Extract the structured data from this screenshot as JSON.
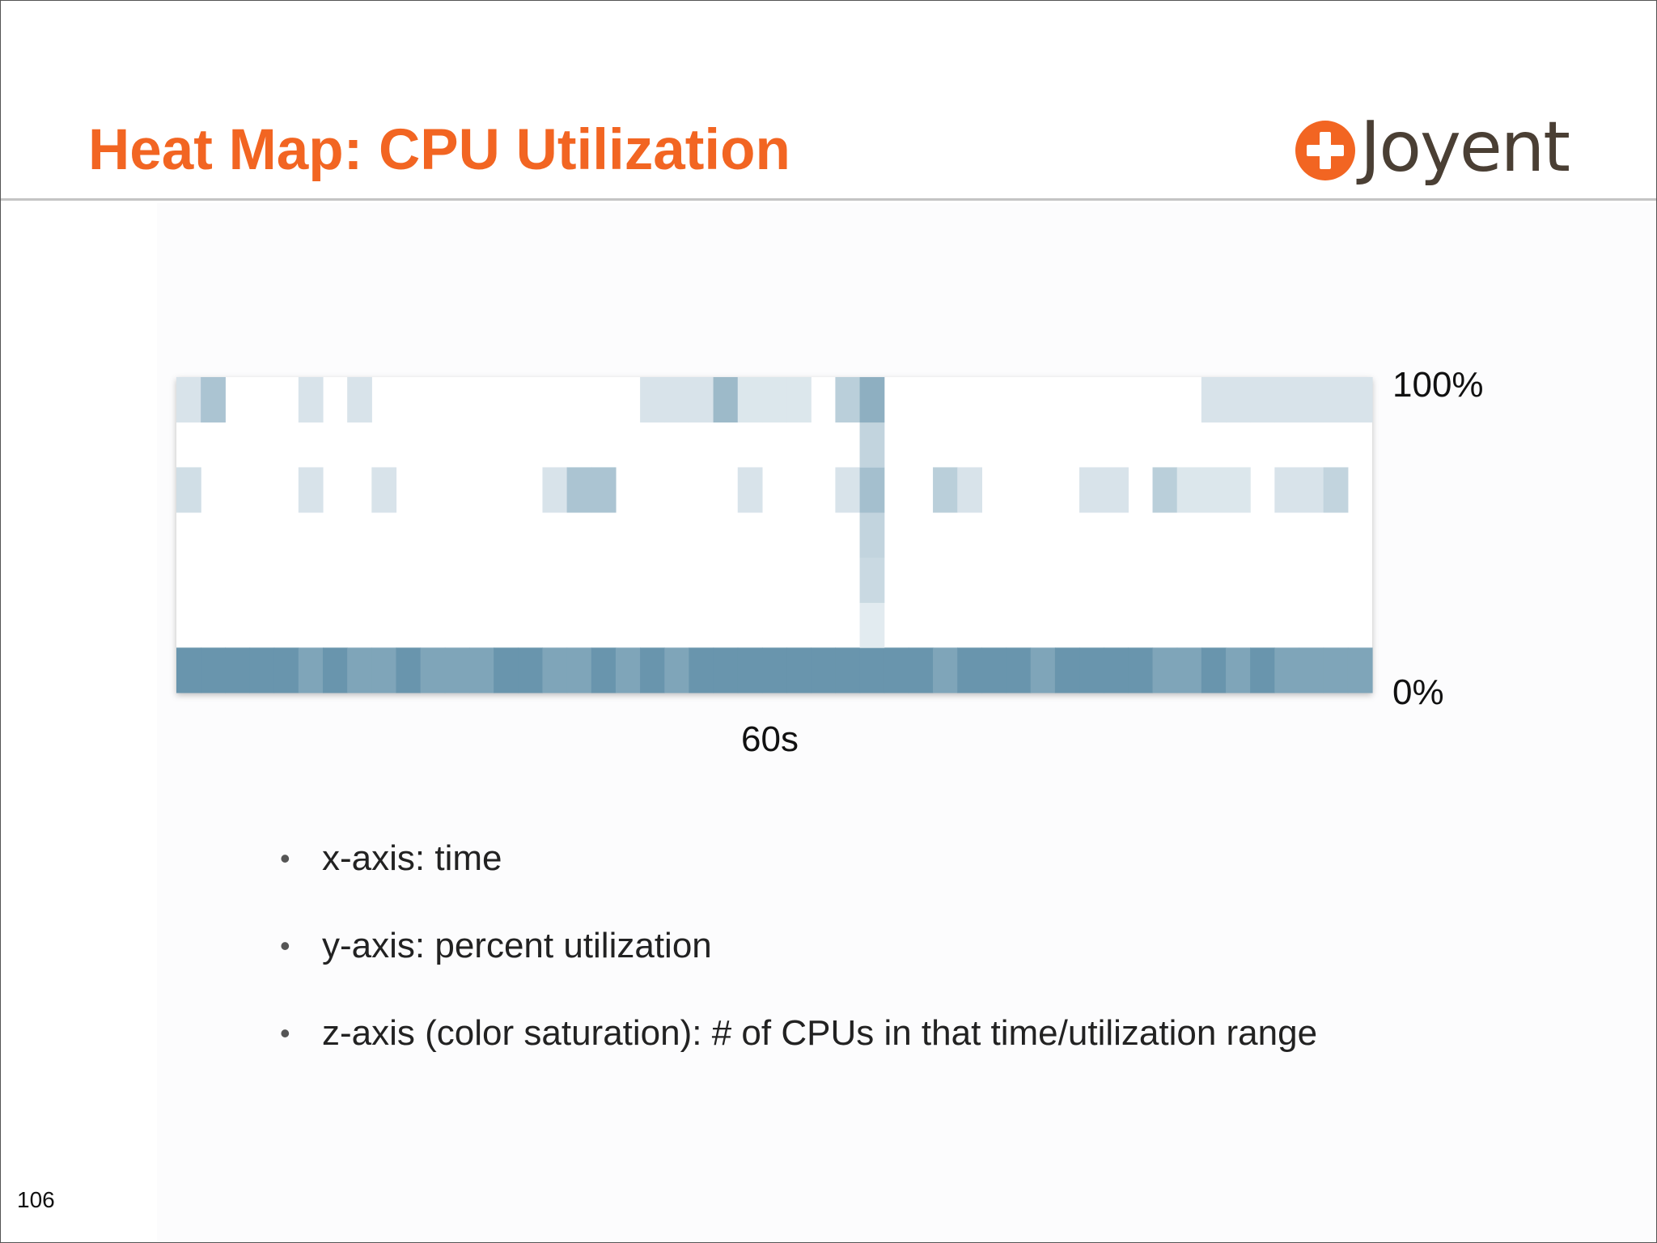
{
  "slide": {
    "title": "Heat Map: CPU Utilization",
    "title_color": "#f26522",
    "page_number": "106",
    "logo": {
      "text": "Joyent",
      "text_color": "#4a3f34",
      "mark_color": "#f26522",
      "icon": "plus-circle-icon"
    }
  },
  "chart_data": {
    "type": "heatmap",
    "title": "",
    "xlabel": "60s",
    "ylabel": "",
    "y_top_label": "100%",
    "y_bottom_label": "0%",
    "n_columns": 49,
    "n_rows": 7,
    "row_note": "row 0 = bottom (0%), row 6 = top (100%)",
    "z_scale": "CPU count (color saturation)",
    "colors": {
      "low": "#eef3f6",
      "high": "#5a8ba5"
    },
    "cells": [
      [
        0,
        0,
        0.9
      ],
      [
        1,
        0,
        0.9
      ],
      [
        2,
        0,
        0.9
      ],
      [
        3,
        0,
        0.9
      ],
      [
        4,
        0,
        0.9
      ],
      [
        5,
        0,
        0.75
      ],
      [
        6,
        0,
        0.9
      ],
      [
        7,
        0,
        0.75
      ],
      [
        8,
        0,
        0.75
      ],
      [
        9,
        0,
        0.9
      ],
      [
        10,
        0,
        0.75
      ],
      [
        11,
        0,
        0.75
      ],
      [
        12,
        0,
        0.75
      ],
      [
        13,
        0,
        0.9
      ],
      [
        14,
        0,
        0.9
      ],
      [
        15,
        0,
        0.75
      ],
      [
        16,
        0,
        0.75
      ],
      [
        17,
        0,
        0.9
      ],
      [
        18,
        0,
        0.75
      ],
      [
        19,
        0,
        0.9
      ],
      [
        20,
        0,
        0.75
      ],
      [
        21,
        0,
        0.9
      ],
      [
        22,
        0,
        0.9
      ],
      [
        23,
        0,
        0.9
      ],
      [
        24,
        0,
        0.9
      ],
      [
        25,
        0,
        0.9
      ],
      [
        26,
        0,
        0.9
      ],
      [
        27,
        0,
        0.9
      ],
      [
        28,
        0,
        0.9
      ],
      [
        29,
        0,
        0.9
      ],
      [
        30,
        0,
        0.9
      ],
      [
        31,
        0,
        0.75
      ],
      [
        32,
        0,
        0.9
      ],
      [
        33,
        0,
        0.9
      ],
      [
        34,
        0,
        0.9
      ],
      [
        35,
        0,
        0.75
      ],
      [
        36,
        0,
        0.9
      ],
      [
        37,
        0,
        0.9
      ],
      [
        38,
        0,
        0.9
      ],
      [
        39,
        0,
        0.9
      ],
      [
        40,
        0,
        0.75
      ],
      [
        41,
        0,
        0.75
      ],
      [
        42,
        0,
        0.9
      ],
      [
        43,
        0,
        0.75
      ],
      [
        44,
        0,
        0.9
      ],
      [
        45,
        0,
        0.75
      ],
      [
        46,
        0,
        0.75
      ],
      [
        47,
        0,
        0.75
      ],
      [
        48,
        0,
        0.75
      ],
      [
        28,
        1,
        0.08
      ],
      [
        28,
        2,
        0.25
      ],
      [
        28,
        3,
        0.3
      ],
      [
        0,
        4,
        0.2
      ],
      [
        5,
        4,
        0.15
      ],
      [
        8,
        4,
        0.15
      ],
      [
        15,
        4,
        0.15
      ],
      [
        16,
        4,
        0.45
      ],
      [
        17,
        4,
        0.45
      ],
      [
        23,
        4,
        0.15
      ],
      [
        27,
        4,
        0.15
      ],
      [
        28,
        4,
        0.5
      ],
      [
        31,
        4,
        0.35
      ],
      [
        32,
        4,
        0.15
      ],
      [
        37,
        4,
        0.15
      ],
      [
        38,
        4,
        0.15
      ],
      [
        40,
        4,
        0.35
      ],
      [
        41,
        4,
        0.12
      ],
      [
        42,
        4,
        0.12
      ],
      [
        43,
        4,
        0.12
      ],
      [
        45,
        4,
        0.15
      ],
      [
        46,
        4,
        0.15
      ],
      [
        47,
        4,
        0.3
      ],
      [
        28,
        5,
        0.3
      ],
      [
        0,
        6,
        0.15
      ],
      [
        1,
        6,
        0.45
      ],
      [
        5,
        6,
        0.15
      ],
      [
        7,
        6,
        0.15
      ],
      [
        19,
        6,
        0.15
      ],
      [
        20,
        6,
        0.15
      ],
      [
        21,
        6,
        0.15
      ],
      [
        22,
        6,
        0.55
      ],
      [
        23,
        6,
        0.12
      ],
      [
        24,
        6,
        0.12
      ],
      [
        25,
        6,
        0.12
      ],
      [
        27,
        6,
        0.35
      ],
      [
        28,
        6,
        0.65
      ],
      [
        42,
        6,
        0.15
      ],
      [
        43,
        6,
        0.15
      ],
      [
        44,
        6,
        0.15
      ],
      [
        45,
        6,
        0.15
      ],
      [
        46,
        6,
        0.15
      ],
      [
        47,
        6,
        0.15
      ],
      [
        48,
        6,
        0.15
      ]
    ]
  },
  "bullets": [
    "x-axis: time",
    "y-axis: percent utilization",
    "z-axis (color saturation): # of CPUs in that time/utilization range"
  ],
  "bullet_glyph": "•"
}
